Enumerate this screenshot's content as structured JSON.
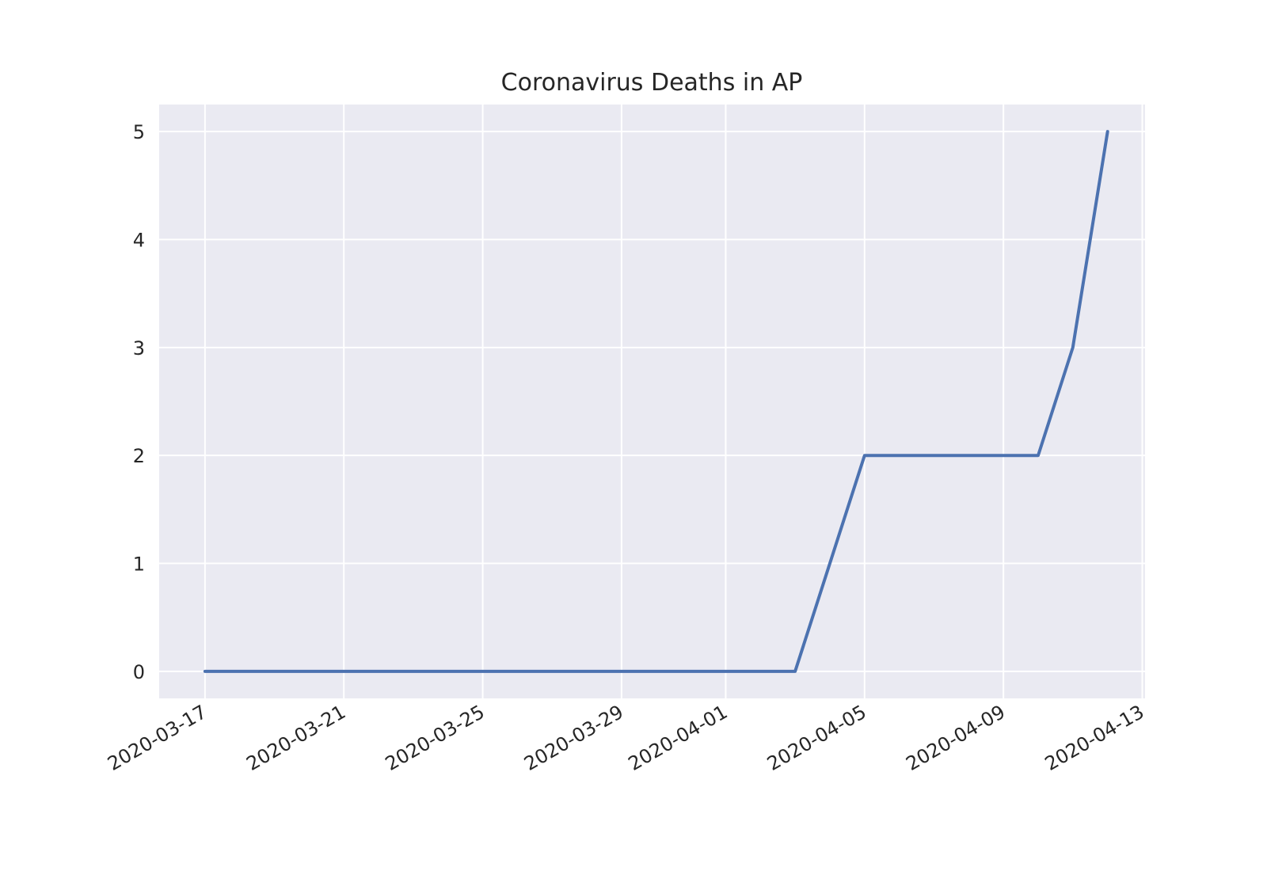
{
  "chart_data": {
    "type": "line",
    "title": "Coronavirus Deaths in AP",
    "xlabel": "",
    "ylabel": "",
    "x_axis_type": "date",
    "xlim": [
      "2020-03-15",
      "2020-04-13"
    ],
    "ylim": [
      -0.25,
      5.25
    ],
    "x_tick_labels": [
      "2020-03-17",
      "2020-03-21",
      "2020-03-25",
      "2020-03-29",
      "2020-04-01",
      "2020-04-05",
      "2020-04-09",
      "2020-04-13"
    ],
    "y_tick_labels": [
      "0",
      "1",
      "2",
      "3",
      "4",
      "5"
    ],
    "grid": true,
    "legend": "none",
    "series": [
      {
        "color": "#4c72b0",
        "x": [
          "2020-03-17",
          "2020-04-03",
          "2020-04-05",
          "2020-04-10",
          "2020-04-11",
          "2020-04-12"
        ],
        "y": [
          0,
          0,
          2,
          2,
          3,
          5
        ]
      }
    ]
  },
  "colors": {
    "plot_background": "#eaeaf2",
    "grid": "#ffffff",
    "text": "#262626"
  }
}
